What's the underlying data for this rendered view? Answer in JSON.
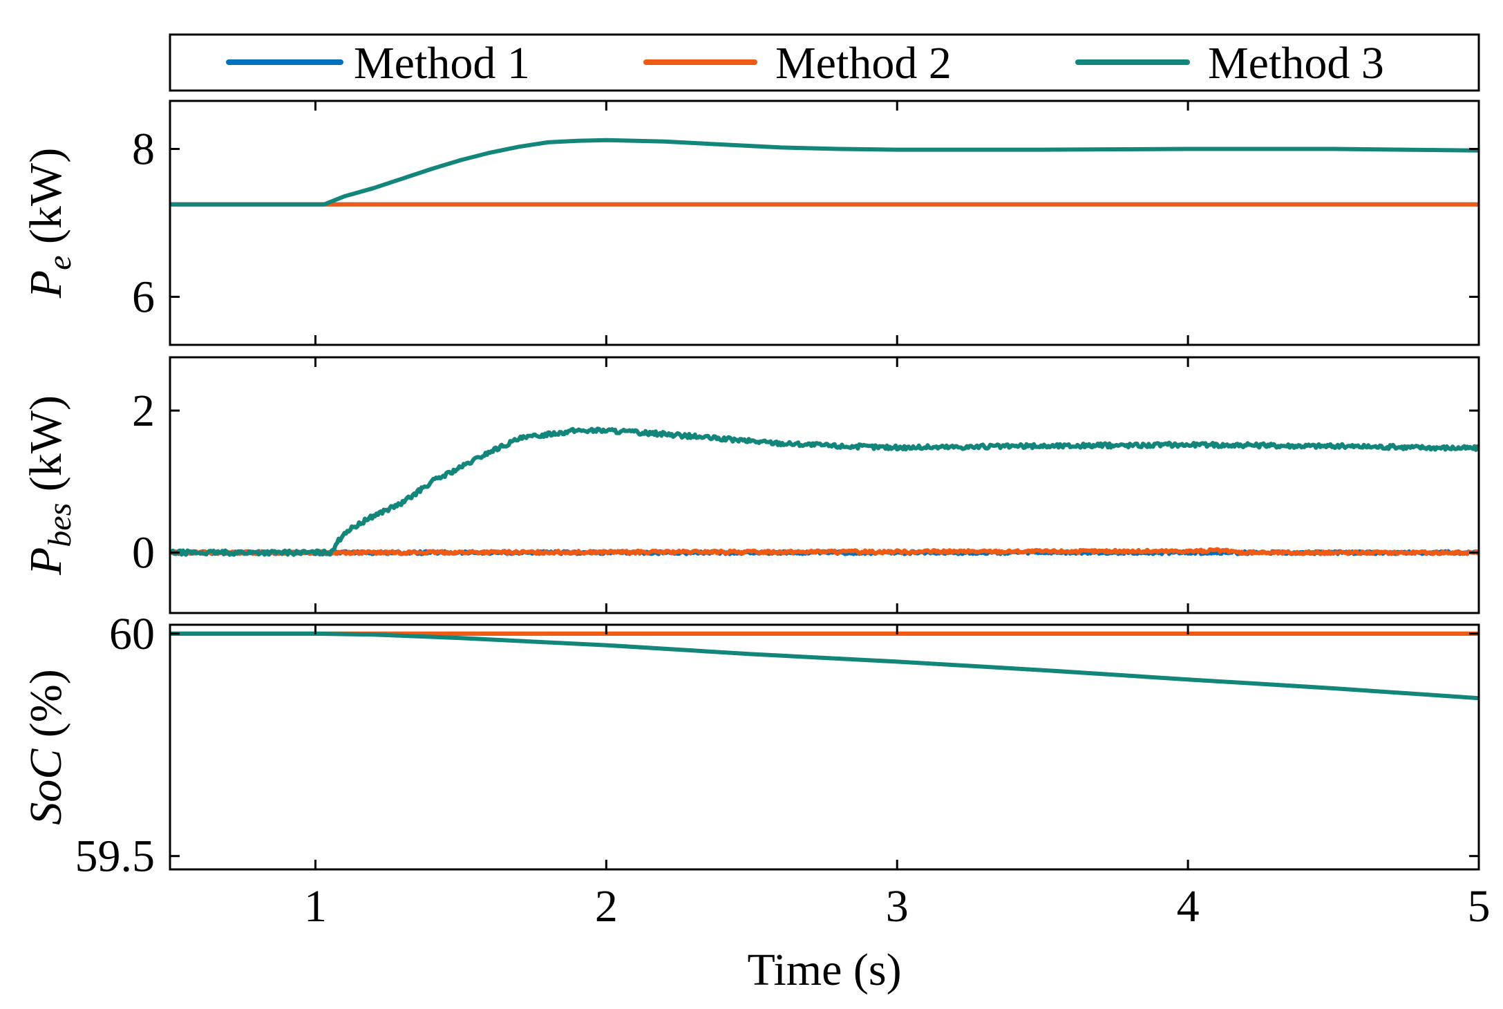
{
  "chart_data": {
    "type": "line",
    "xlabel": "Time (s)",
    "xlim": [
      0.5,
      5
    ],
    "xticks": [
      1,
      2,
      3,
      4,
      5
    ],
    "legend": {
      "placement": "top",
      "entries": [
        {
          "name": "Method 1",
          "color": "#0072BD"
        },
        {
          "name": "Method 2",
          "color": "#F05A12"
        },
        {
          "name": "Method 3",
          "color": "#12867A"
        }
      ]
    },
    "panels": [
      {
        "id": "pe",
        "ylabel_main": "P",
        "ylabel_sub": "e",
        "ylabel_unit": " (kW)",
        "ylim": [
          5.35,
          8.65
        ],
        "yticks": [
          {
            "v": 6,
            "label": "6"
          },
          {
            "v": 8,
            "label": "8"
          }
        ],
        "series": [
          {
            "name": "Method 1",
            "noise": 0,
            "points": [
              [
                0.5,
                7.25
              ],
              [
                5,
                7.25
              ]
            ]
          },
          {
            "name": "Method 2",
            "noise": 0,
            "points": [
              [
                0.5,
                7.25
              ],
              [
                5,
                7.25
              ]
            ]
          },
          {
            "name": "Method 3",
            "noise": 0,
            "points": [
              [
                0.5,
                7.25
              ],
              [
                1.03,
                7.25
              ],
              [
                1.1,
                7.36
              ],
              [
                1.2,
                7.47
              ],
              [
                1.3,
                7.6
              ],
              [
                1.4,
                7.73
              ],
              [
                1.5,
                7.85
              ],
              [
                1.6,
                7.95
              ],
              [
                1.7,
                8.03
              ],
              [
                1.8,
                8.09
              ],
              [
                1.9,
                8.11
              ],
              [
                2.0,
                8.12
              ],
              [
                2.2,
                8.1
              ],
              [
                2.4,
                8.06
              ],
              [
                2.6,
                8.02
              ],
              [
                2.8,
                8.0
              ],
              [
                3.0,
                7.99
              ],
              [
                3.5,
                7.99
              ],
              [
                4.0,
                8.0
              ],
              [
                4.5,
                8.0
              ],
              [
                5.0,
                7.98
              ]
            ]
          }
        ]
      },
      {
        "id": "pbes",
        "ylabel_main": "P",
        "ylabel_sub": "bes",
        "ylabel_unit": " (kW)",
        "ylim": [
          -0.85,
          2.75
        ],
        "yticks": [
          {
            "v": 0,
            "label": "0"
          },
          {
            "v": 2,
            "label": "2"
          }
        ],
        "series": [
          {
            "name": "Method 1",
            "noise": 0.02,
            "points": [
              [
                0.5,
                0.0
              ],
              [
                5,
                0.0
              ]
            ]
          },
          {
            "name": "Method 2",
            "noise": 0.02,
            "points": [
              [
                0.5,
                0.0
              ],
              [
                1.05,
                0.0
              ],
              [
                4.0,
                0.02
              ],
              [
                4.1,
                0.03
              ],
              [
                4.2,
                0.0
              ],
              [
                5,
                0.0
              ]
            ]
          },
          {
            "name": "Method 3",
            "noise": 0.03,
            "points": [
              [
                0.5,
                0.0
              ],
              [
                1.05,
                0.0
              ],
              [
                1.1,
                0.28
              ],
              [
                1.2,
                0.52
              ],
              [
                1.3,
                0.7
              ],
              [
                1.4,
                1.0
              ],
              [
                1.5,
                1.2
              ],
              [
                1.6,
                1.42
              ],
              [
                1.7,
                1.6
              ],
              [
                1.8,
                1.67
              ],
              [
                1.9,
                1.72
              ],
              [
                2.0,
                1.72
              ],
              [
                2.2,
                1.67
              ],
              [
                2.4,
                1.6
              ],
              [
                2.6,
                1.54
              ],
              [
                2.8,
                1.5
              ],
              [
                3.0,
                1.48
              ],
              [
                3.5,
                1.5
              ],
              [
                4.0,
                1.52
              ],
              [
                4.5,
                1.5
              ],
              [
                5.0,
                1.47
              ]
            ]
          }
        ]
      },
      {
        "id": "soc",
        "ylabel_main": "SoC (%)",
        "ylabel_sub": "",
        "ylabel_unit": "",
        "ylim": [
          59.47,
          60.02
        ],
        "yticks": [
          {
            "v": 59.5,
            "label": "59.5"
          },
          {
            "v": 60.0,
            "label": "60"
          }
        ],
        "series": [
          {
            "name": "Method 1",
            "noise": 0,
            "points": [
              [
                0.5,
                60.0
              ],
              [
                5,
                60.0
              ]
            ]
          },
          {
            "name": "Method 2",
            "noise": 0,
            "points": [
              [
                0.5,
                60.0
              ],
              [
                5,
                60.0
              ]
            ]
          },
          {
            "name": "Method 3",
            "noise": 0,
            "points": [
              [
                0.5,
                60.0
              ],
              [
                1.0,
                60.0
              ],
              [
                1.2,
                59.998
              ],
              [
                1.5,
                59.99
              ],
              [
                2.0,
                59.974
              ],
              [
                2.5,
                59.954
              ],
              [
                3.0,
                59.937
              ],
              [
                3.5,
                59.918
              ],
              [
                4.0,
                59.897
              ],
              [
                4.5,
                59.877
              ],
              [
                5.0,
                59.855
              ]
            ]
          }
        ]
      }
    ]
  }
}
